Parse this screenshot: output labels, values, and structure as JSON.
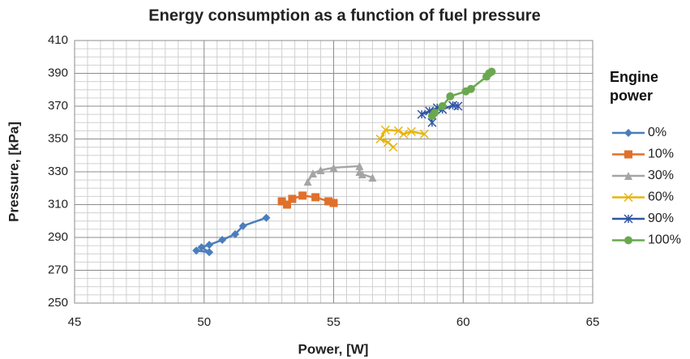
{
  "chart_data": {
    "type": "line",
    "title": "Energy consumption as a function of fuel pressure",
    "x_label": "Power, [W]",
    "y_label": "Pressure, [kPa]",
    "legend_title": "Engine power",
    "legend": "right",
    "grid": true,
    "xlim": [
      45,
      65
    ],
    "xticks": [
      45,
      50,
      55,
      60,
      65
    ],
    "ylim": [
      250,
      410
    ],
    "yticks": [
      250,
      270,
      290,
      310,
      330,
      350,
      370,
      390,
      410
    ],
    "xminorticks": [
      45.5,
      46,
      46.5,
      47,
      47.5,
      48,
      48.5,
      49,
      49.5,
      50.5,
      51,
      51.5,
      52,
      52.5,
      53,
      53.5,
      54,
      54.5,
      55.5,
      56,
      56.5,
      57,
      57.5,
      58,
      58.5,
      59,
      59.5,
      60.5,
      61,
      61.5,
      62,
      62.5,
      63,
      63.5,
      64,
      64.5
    ],
    "yminorticks": [
      255,
      260,
      265,
      275,
      280,
      285,
      295,
      300,
      305,
      315,
      320,
      325,
      335,
      340,
      345,
      355,
      360,
      365,
      375,
      380,
      385,
      395,
      400,
      405
    ],
    "series": [
      {
        "name": "0%",
        "color": "#4a7ebb",
        "marker": "diamond",
        "x": [
          49.7,
          50.2,
          49.9,
          50.2,
          50.7,
          51.2,
          51.5,
          52.4
        ],
        "values": [
          282,
          281,
          284,
          285.5,
          288.5,
          292,
          297,
          302
        ]
      },
      {
        "name": "10%",
        "color": "#e0702a",
        "marker": "square",
        "x": [
          53.0,
          53.2,
          53.4,
          53.8,
          54.3,
          54.8,
          55.0
        ],
        "values": [
          312,
          310,
          313.5,
          315.5,
          314.5,
          312,
          311
        ]
      },
      {
        "name": "30%",
        "color": "#a5a5a5",
        "marker": "triangle",
        "x": [
          54.0,
          54.2,
          54.5,
          55.0,
          56.0,
          56.0,
          56.1,
          56.5
        ],
        "values": [
          324,
          329,
          331,
          332.5,
          333.5,
          330,
          328.5,
          326.5
        ]
      },
      {
        "name": "60%",
        "color": "#e8b40c",
        "marker": "x",
        "x": [
          57.3,
          57.1,
          56.8,
          57.0,
          57.5,
          57.7,
          58.0,
          58.5
        ],
        "values": [
          345,
          348,
          350,
          355.5,
          355,
          353,
          354.5,
          353
        ]
      },
      {
        "name": "90%",
        "color": "#2f55a4",
        "marker": "star",
        "x": [
          58.8,
          58.7,
          58.4,
          59.0,
          59.2,
          59.6,
          59.8
        ],
        "values": [
          360,
          367,
          365,
          369,
          368,
          370.5,
          370
        ]
      },
      {
        "name": "100%",
        "color": "#6aa84f",
        "marker": "circle",
        "x": [
          58.8,
          58.9,
          59.2,
          59.5,
          60.1,
          60.3,
          60.9,
          61.0,
          61.1
        ],
        "values": [
          364,
          366,
          370,
          376,
          379,
          380.5,
          388,
          390,
          391
        ]
      }
    ]
  }
}
